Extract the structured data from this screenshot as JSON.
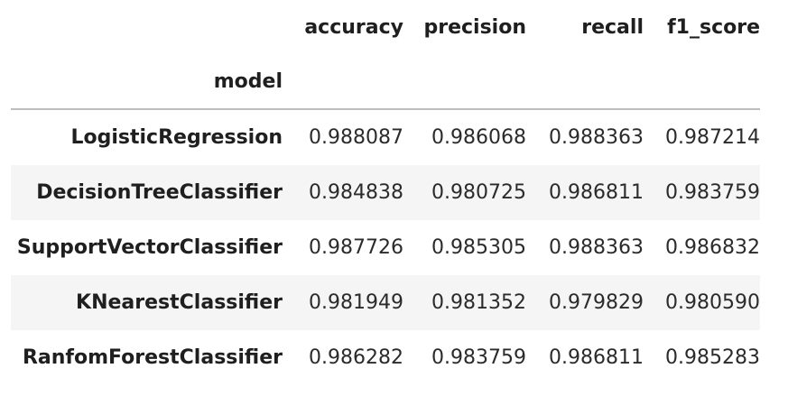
{
  "table": {
    "index_name": "model",
    "columns": [
      "accuracy",
      "precision",
      "recall",
      "f1_score"
    ],
    "rows": [
      {
        "model": "LogisticRegression",
        "accuracy": "0.988087",
        "precision": "0.986068",
        "recall": "0.988363",
        "f1_score": "0.987214"
      },
      {
        "model": "DecisionTreeClassifier",
        "accuracy": "0.984838",
        "precision": "0.980725",
        "recall": "0.986811",
        "f1_score": "0.983759"
      },
      {
        "model": "SupportVectorClassifier",
        "accuracy": "0.987726",
        "precision": "0.985305",
        "recall": "0.988363",
        "f1_score": "0.986832"
      },
      {
        "model": "KNearestClassifier",
        "accuracy": "0.981949",
        "precision": "0.981352",
        "recall": "0.979829",
        "f1_score": "0.980590"
      },
      {
        "model": "RanfomForestClassifier",
        "accuracy": "0.986282",
        "precision": "0.983759",
        "recall": "0.986811",
        "f1_score": "0.985283"
      }
    ]
  },
  "colors": {
    "stripe": "#f5f5f5",
    "header_rule": "#bdbdbd",
    "text": "#1f1f1f"
  }
}
